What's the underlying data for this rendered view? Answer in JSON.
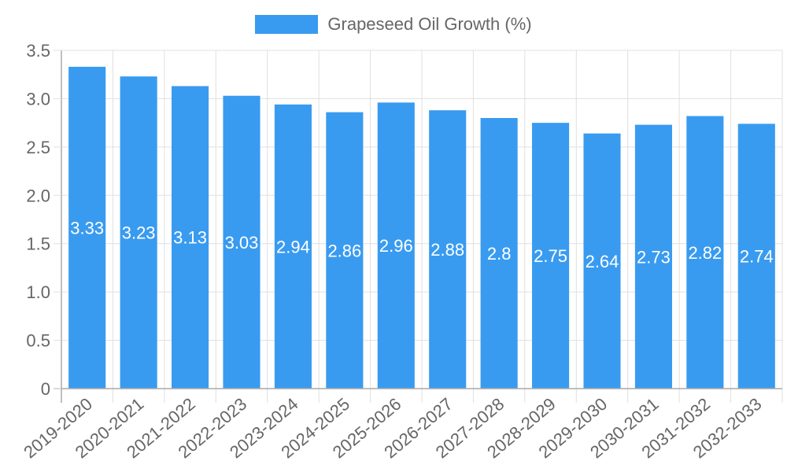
{
  "legend": {
    "label": "Grapeseed Oil Growth (%)",
    "color": "#399BF0"
  },
  "colors": {
    "bar": "#399BF0",
    "grid": "#e0e0e0",
    "axis": "#aaaaaa",
    "tick_text": "#666666",
    "value_label": "#ffffff"
  },
  "chart_data": {
    "type": "bar",
    "title": "",
    "xlabel": "",
    "ylabel": "",
    "categories": [
      "2019-2020",
      "2020-2021",
      "2021-2022",
      "2022-2023",
      "2023-2024",
      "2024-2025",
      "2025-2026",
      "2026-2027",
      "2027-2028",
      "2028-2029",
      "2029-2030",
      "2030-2031",
      "2031-2032",
      "2032-2033"
    ],
    "series": [
      {
        "name": "Grapeseed Oil Growth (%)",
        "values": [
          3.33,
          3.23,
          3.13,
          3.03,
          2.94,
          2.86,
          2.96,
          2.88,
          2.8,
          2.75,
          2.64,
          2.73,
          2.82,
          2.74
        ]
      }
    ],
    "value_labels": [
      "3.33",
      "3.23",
      "3.13",
      "3.03",
      "2.94",
      "2.86",
      "2.96",
      "2.88",
      "2.8",
      "2.75",
      "2.64",
      "2.73",
      "2.82",
      "2.74"
    ],
    "ylim": [
      0,
      3.5
    ],
    "yticks": [
      "0",
      "0.5",
      "1.0",
      "1.5",
      "2.0",
      "2.5",
      "3.0",
      "3.5"
    ],
    "grid": true,
    "legend_position": "top"
  }
}
